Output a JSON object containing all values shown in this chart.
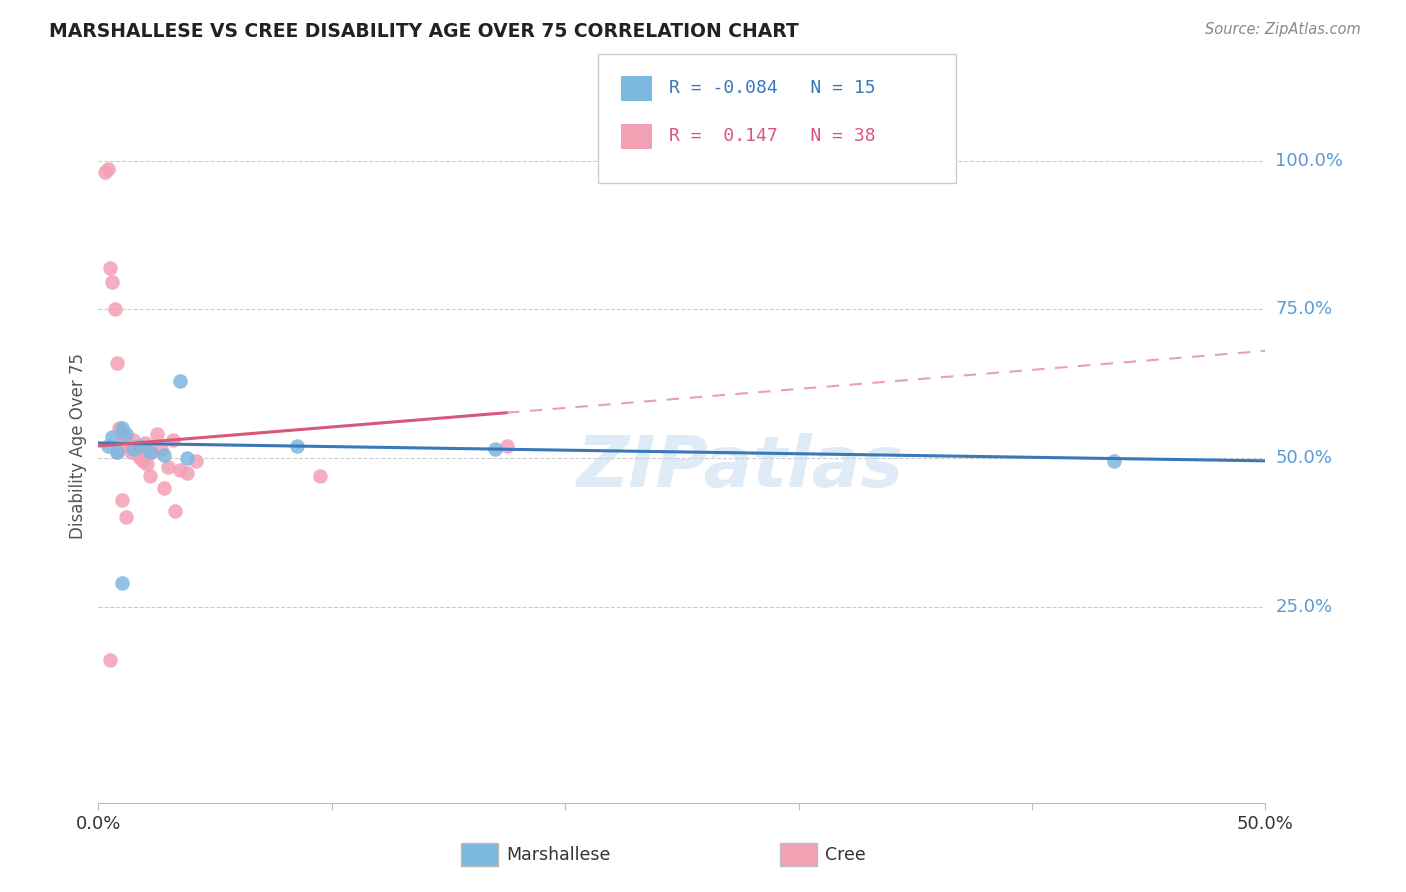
{
  "title": "MARSHALLESE VS CREE DISABILITY AGE OVER 75 CORRELATION CHART",
  "source": "Source: ZipAtlas.com",
  "ylabel": "Disability Age Over 75",
  "xlim": [
    0.0,
    50.0
  ],
  "ylim": [
    -8.0,
    112.0
  ],
  "r_marshallese": -0.084,
  "n_marshallese": 15,
  "r_cree": 0.147,
  "n_cree": 38,
  "marshallese_color": "#7DB8E0",
  "cree_color": "#F4A0B4",
  "marshallese_line_color": "#3A78B8",
  "cree_solid_color": "#D85878",
  "cree_dash_color": "#E8A0B4",
  "watermark": "ZIPatlas",
  "marshallese_x": [
    0.4,
    0.6,
    0.8,
    1.0,
    1.2,
    1.5,
    1.8,
    2.2,
    2.8,
    3.5,
    3.8,
    8.5,
    17.0,
    43.5,
    1.0
  ],
  "marshallese_y": [
    52.0,
    53.5,
    51.0,
    55.0,
    54.0,
    51.5,
    52.0,
    51.0,
    50.5,
    63.0,
    50.0,
    52.0,
    51.5,
    49.5,
    29.0
  ],
  "cree_x": [
    0.3,
    0.4,
    0.5,
    0.6,
    0.7,
    0.8,
    0.9,
    1.0,
    1.1,
    1.2,
    1.3,
    1.4,
    1.5,
    1.6,
    1.7,
    1.8,
    1.9,
    2.0,
    2.1,
    2.3,
    2.5,
    2.7,
    3.0,
    3.2,
    3.5,
    3.8,
    4.2,
    1.2,
    2.8,
    9.5,
    17.5,
    1.0,
    2.2,
    3.3,
    0.5,
    0.8,
    1.5,
    2.0
  ],
  "cree_y": [
    98.0,
    98.5,
    82.0,
    79.5,
    75.0,
    66.0,
    55.0,
    54.0,
    53.5,
    52.5,
    52.0,
    51.0,
    53.0,
    51.5,
    50.5,
    50.0,
    49.5,
    52.5,
    49.0,
    51.0,
    54.0,
    51.5,
    48.5,
    53.0,
    48.0,
    47.5,
    49.5,
    40.0,
    45.0,
    47.0,
    52.0,
    43.0,
    47.0,
    41.0,
    16.0,
    51.0,
    52.0,
    50.5
  ],
  "cree_line_x0": 0.0,
  "cree_line_y0": 52.0,
  "cree_line_x1": 50.0,
  "cree_line_y1": 68.0,
  "marsh_line_x0": 0.0,
  "marsh_line_y0": 52.5,
  "marsh_line_x1": 50.0,
  "marsh_line_y1": 49.5,
  "cree_solid_end_x": 17.5
}
